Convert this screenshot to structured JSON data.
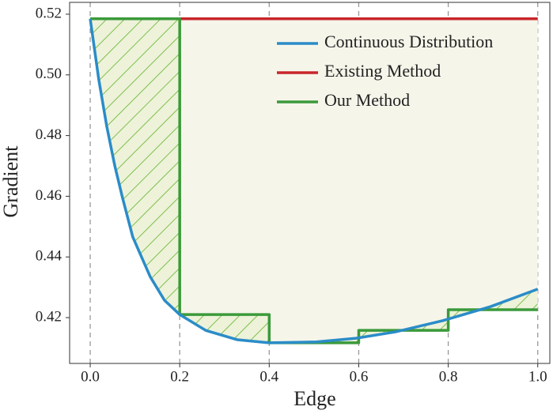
{
  "chart_data": {
    "type": "line",
    "xlabel": "Edge",
    "ylabel": "Gradient",
    "xlim": [
      -0.046,
      1.027
    ],
    "ylim": [
      0.4049,
      0.5239
    ],
    "xticks": [
      {
        "value": 0,
        "label": "0.0"
      },
      0.2,
      0.4,
      0.6,
      0.8,
      {
        "value": 1,
        "label": "1.0"
      }
    ],
    "yticks": [
      0.42,
      0.44,
      0.46,
      0.48,
      {
        "value": 0.5,
        "label": "0.50"
      },
      0.52
    ],
    "legend": "upper right",
    "series": [
      {
        "name": "Continuous Distribution",
        "color": "#2b8cc8",
        "x": [
          0,
          0.019,
          0.037,
          0.055,
          0.072,
          0.095,
          0.134,
          0.166,
          0.2,
          0.258,
          0.329,
          0.399,
          0.505,
          0.594,
          0.682,
          0.788,
          0.894,
          1.0
        ],
        "values": [
          0.5185,
          0.4986,
          0.483,
          0.47,
          0.4596,
          0.4466,
          0.4335,
          0.4257,
          0.421,
          0.4158,
          0.4127,
          0.4117,
          0.412,
          0.4132,
          0.4153,
          0.419,
          0.4236,
          0.4294
        ]
      },
      {
        "name": "Existing Method",
        "color": "#c8262a",
        "x": [
          0,
          1.0
        ],
        "values": [
          0.5185,
          0.5185
        ]
      },
      {
        "name": "Our Method",
        "color": "#3a9a3a",
        "x": [
          0,
          0.2,
          0.2,
          0.4,
          0.4,
          0.6,
          0.6,
          0.8,
          0.8,
          1.0
        ],
        "values": [
          0.5185,
          0.5185,
          0.421,
          0.421,
          0.4117,
          0.4117,
          0.4158,
          0.4158,
          0.4226,
          0.4226
        ]
      }
    ]
  }
}
